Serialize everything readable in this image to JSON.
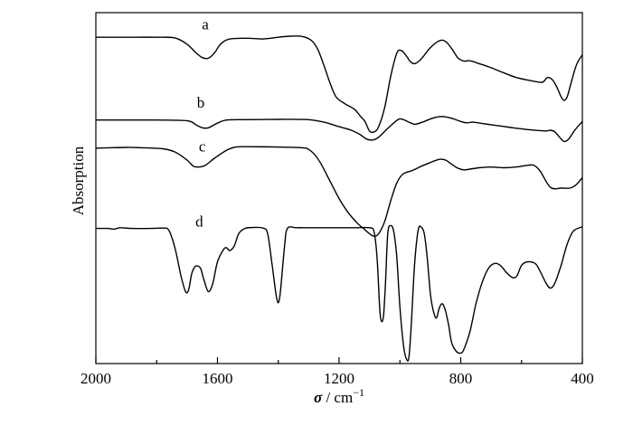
{
  "chart_data": {
    "type": "line",
    "title": "",
    "xlabel_symbol": "σ",
    "xlabel_unit": " / cm",
    "xlabel_exp": "−1",
    "ylabel": "Absorption",
    "xlim": [
      2000,
      400
    ],
    "x_reversed": true,
    "ylim": [
      0,
      1
    ],
    "x_ticks": [
      2000,
      1600,
      1200,
      800,
      400
    ],
    "x_minor_ticks": [
      1800,
      1400,
      1000,
      600
    ],
    "grid": false,
    "legend": "none",
    "line_color": "#000000",
    "series": [
      {
        "name": "a",
        "label_at": [
          1640,
          0.952
        ],
        "points": [
          [
            2000,
            0.93
          ],
          [
            1900,
            0.93
          ],
          [
            1800,
            0.93
          ],
          [
            1740,
            0.928
          ],
          [
            1700,
            0.91
          ],
          [
            1670,
            0.885
          ],
          [
            1650,
            0.872
          ],
          [
            1630,
            0.87
          ],
          [
            1610,
            0.885
          ],
          [
            1590,
            0.91
          ],
          [
            1560,
            0.925
          ],
          [
            1500,
            0.927
          ],
          [
            1450,
            0.925
          ],
          [
            1400,
            0.93
          ],
          [
            1360,
            0.933
          ],
          [
            1320,
            0.932
          ],
          [
            1290,
            0.92
          ],
          [
            1270,
            0.895
          ],
          [
            1250,
            0.85
          ],
          [
            1230,
            0.8
          ],
          [
            1210,
            0.76
          ],
          [
            1180,
            0.74
          ],
          [
            1150,
            0.725
          ],
          [
            1130,
            0.705
          ],
          [
            1115,
            0.69
          ],
          [
            1100,
            0.663
          ],
          [
            1085,
            0.66
          ],
          [
            1070,
            0.675
          ],
          [
            1050,
            0.73
          ],
          [
            1030,
            0.82
          ],
          [
            1010,
            0.885
          ],
          [
            995,
            0.892
          ],
          [
            980,
            0.878
          ],
          [
            965,
            0.86
          ],
          [
            950,
            0.855
          ],
          [
            930,
            0.868
          ],
          [
            900,
            0.9
          ],
          [
            870,
            0.92
          ],
          [
            850,
            0.918
          ],
          [
            830,
            0.898
          ],
          [
            810,
            0.872
          ],
          [
            790,
            0.862
          ],
          [
            770,
            0.863
          ],
          [
            740,
            0.855
          ],
          [
            700,
            0.843
          ],
          [
            660,
            0.829
          ],
          [
            620,
            0.816
          ],
          [
            580,
            0.808
          ],
          [
            550,
            0.803
          ],
          [
            530,
            0.802
          ],
          [
            515,
            0.815
          ],
          [
            500,
            0.81
          ],
          [
            485,
            0.79
          ],
          [
            470,
            0.76
          ],
          [
            460,
            0.75
          ],
          [
            450,
            0.76
          ],
          [
            440,
            0.79
          ],
          [
            420,
            0.85
          ],
          [
            400,
            0.88
          ]
        ]
      },
      {
        "name": "b",
        "label_at": [
          1655,
          0.73
        ],
        "points": [
          [
            2000,
            0.694
          ],
          [
            1900,
            0.694
          ],
          [
            1800,
            0.694
          ],
          [
            1700,
            0.692
          ],
          [
            1670,
            0.68
          ],
          [
            1650,
            0.672
          ],
          [
            1630,
            0.672
          ],
          [
            1600,
            0.685
          ],
          [
            1570,
            0.694
          ],
          [
            1500,
            0.695
          ],
          [
            1400,
            0.696
          ],
          [
            1300,
            0.695
          ],
          [
            1250,
            0.688
          ],
          [
            1200,
            0.675
          ],
          [
            1160,
            0.665
          ],
          [
            1130,
            0.652
          ],
          [
            1110,
            0.64
          ],
          [
            1090,
            0.637
          ],
          [
            1070,
            0.645
          ],
          [
            1040,
            0.67
          ],
          [
            1010,
            0.693
          ],
          [
            995,
            0.697
          ],
          [
            970,
            0.688
          ],
          [
            950,
            0.682
          ],
          [
            920,
            0.69
          ],
          [
            890,
            0.7
          ],
          [
            860,
            0.704
          ],
          [
            830,
            0.699
          ],
          [
            800,
            0.69
          ],
          [
            780,
            0.686
          ],
          [
            760,
            0.688
          ],
          [
            720,
            0.683
          ],
          [
            670,
            0.677
          ],
          [
            620,
            0.671
          ],
          [
            570,
            0.666
          ],
          [
            520,
            0.663
          ],
          [
            505,
            0.665
          ],
          [
            490,
            0.66
          ],
          [
            475,
            0.645
          ],
          [
            460,
            0.633
          ],
          [
            445,
            0.64
          ],
          [
            425,
            0.665
          ],
          [
            400,
            0.69
          ]
        ]
      },
      {
        "name": "c",
        "label_at": [
          1650,
          0.605
        ],
        "points": [
          [
            2000,
            0.614
          ],
          [
            1900,
            0.616
          ],
          [
            1850,
            0.615
          ],
          [
            1780,
            0.612
          ],
          [
            1740,
            0.603
          ],
          [
            1700,
            0.58
          ],
          [
            1680,
            0.563
          ],
          [
            1660,
            0.56
          ],
          [
            1640,
            0.565
          ],
          [
            1610,
            0.585
          ],
          [
            1570,
            0.608
          ],
          [
            1540,
            0.617
          ],
          [
            1500,
            0.618
          ],
          [
            1400,
            0.617
          ],
          [
            1320,
            0.615
          ],
          [
            1300,
            0.61
          ],
          [
            1280,
            0.595
          ],
          [
            1260,
            0.57
          ],
          [
            1230,
            0.52
          ],
          [
            1200,
            0.47
          ],
          [
            1170,
            0.43
          ],
          [
            1140,
            0.4
          ],
          [
            1120,
            0.385
          ],
          [
            1100,
            0.37
          ],
          [
            1085,
            0.363
          ],
          [
            1070,
            0.37
          ],
          [
            1050,
            0.405
          ],
          [
            1030,
            0.465
          ],
          [
            1010,
            0.515
          ],
          [
            990,
            0.54
          ],
          [
            960,
            0.55
          ],
          [
            930,
            0.562
          ],
          [
            900,
            0.573
          ],
          [
            870,
            0.582
          ],
          [
            850,
            0.58
          ],
          [
            830,
            0.568
          ],
          [
            810,
            0.557
          ],
          [
            790,
            0.552
          ],
          [
            770,
            0.554
          ],
          [
            740,
            0.558
          ],
          [
            700,
            0.56
          ],
          [
            660,
            0.558
          ],
          [
            620,
            0.56
          ],
          [
            580,
            0.565
          ],
          [
            560,
            0.565
          ],
          [
            540,
            0.55
          ],
          [
            520,
            0.52
          ],
          [
            505,
            0.502
          ],
          [
            490,
            0.498
          ],
          [
            470,
            0.5
          ],
          [
            440,
            0.5
          ],
          [
            420,
            0.51
          ],
          [
            400,
            0.53
          ]
        ]
      },
      {
        "name": "d",
        "label_at": [
          1660,
          0.39
        ],
        "points": [
          [
            2000,
            0.385
          ],
          [
            1960,
            0.385
          ],
          [
            1940,
            0.383
          ],
          [
            1920,
            0.387
          ],
          [
            1880,
            0.385
          ],
          [
            1820,
            0.385
          ],
          [
            1780,
            0.386
          ],
          [
            1760,
            0.38
          ],
          [
            1740,
            0.33
          ],
          [
            1720,
            0.25
          ],
          [
            1705,
            0.205
          ],
          [
            1695,
            0.21
          ],
          [
            1685,
            0.255
          ],
          [
            1675,
            0.275
          ],
          [
            1665,
            0.278
          ],
          [
            1655,
            0.27
          ],
          [
            1645,
            0.24
          ],
          [
            1630,
            0.205
          ],
          [
            1615,
            0.23
          ],
          [
            1600,
            0.29
          ],
          [
            1580,
            0.325
          ],
          [
            1570,
            0.33
          ],
          [
            1560,
            0.322
          ],
          [
            1545,
            0.335
          ],
          [
            1530,
            0.37
          ],
          [
            1510,
            0.385
          ],
          [
            1480,
            0.388
          ],
          [
            1450,
            0.386
          ],
          [
            1435,
            0.37
          ],
          [
            1420,
            0.28
          ],
          [
            1405,
            0.185
          ],
          [
            1395,
            0.19
          ],
          [
            1380,
            0.33
          ],
          [
            1370,
            0.385
          ],
          [
            1340,
            0.387
          ],
          [
            1300,
            0.387
          ],
          [
            1200,
            0.387
          ],
          [
            1150,
            0.387
          ],
          [
            1100,
            0.387
          ],
          [
            1085,
            0.375
          ],
          [
            1075,
            0.3
          ],
          [
            1065,
            0.14
          ],
          [
            1055,
            0.13
          ],
          [
            1048,
            0.22
          ],
          [
            1040,
            0.37
          ],
          [
            1030,
            0.393
          ],
          [
            1020,
            0.375
          ],
          [
            1010,
            0.3
          ],
          [
            1000,
            0.16
          ],
          [
            988,
            0.05
          ],
          [
            978,
            0.012
          ],
          [
            970,
            0.02
          ],
          [
            962,
            0.12
          ],
          [
            952,
            0.28
          ],
          [
            940,
            0.38
          ],
          [
            930,
            0.389
          ],
          [
            920,
            0.37
          ],
          [
            910,
            0.3
          ],
          [
            900,
            0.2
          ],
          [
            890,
            0.15
          ],
          [
            880,
            0.13
          ],
          [
            870,
            0.16
          ],
          [
            860,
            0.17
          ],
          [
            850,
            0.15
          ],
          [
            840,
            0.11
          ],
          [
            830,
            0.06
          ],
          [
            815,
            0.035
          ],
          [
            800,
            0.03
          ],
          [
            790,
            0.04
          ],
          [
            770,
            0.09
          ],
          [
            750,
            0.17
          ],
          [
            730,
            0.23
          ],
          [
            710,
            0.27
          ],
          [
            690,
            0.285
          ],
          [
            670,
            0.28
          ],
          [
            650,
            0.26
          ],
          [
            630,
            0.245
          ],
          [
            615,
            0.25
          ],
          [
            600,
            0.28
          ],
          [
            580,
            0.29
          ],
          [
            555,
            0.285
          ],
          [
            540,
            0.265
          ],
          [
            520,
            0.23
          ],
          [
            505,
            0.215
          ],
          [
            490,
            0.23
          ],
          [
            470,
            0.28
          ],
          [
            450,
            0.34
          ],
          [
            430,
            0.377
          ],
          [
            400,
            0.39
          ]
        ]
      }
    ]
  }
}
